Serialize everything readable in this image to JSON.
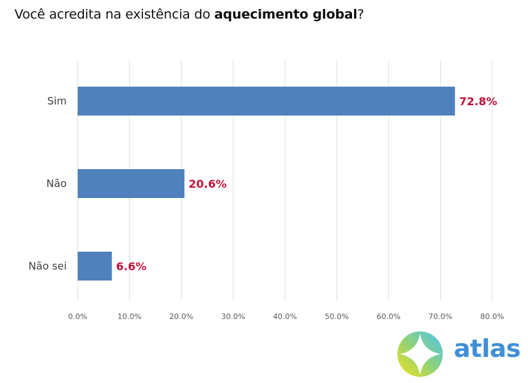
{
  "title": {
    "prefix": "Você acredita na existência do ",
    "bold": "aquecimento global",
    "suffix": "?"
  },
  "chart_data": {
    "type": "bar",
    "orientation": "horizontal",
    "title": "Você acredita na existência do aquecimento global?",
    "xlabel": "",
    "ylabel": "",
    "categories": [
      "Sim",
      "Não",
      "Não sei"
    ],
    "values": [
      72.8,
      20.6,
      6.6
    ],
    "data_labels": [
      "72.8%",
      "20.6%",
      "6.6%"
    ],
    "xlim": [
      0,
      80
    ],
    "x_ticks": [
      0,
      10,
      20,
      30,
      40,
      50,
      60,
      70,
      80
    ],
    "x_tick_labels": [
      "0.0%",
      "10.0%",
      "20.0%",
      "30.0%",
      "40.0%",
      "50.0%",
      "60.0%",
      "70.0%",
      "80.0%"
    ],
    "grid": "vertical",
    "legend": "none",
    "colors": {
      "bar": "#4f81bd",
      "data_label": "#c0143c",
      "grid": "#e3e3e3"
    }
  },
  "logo": {
    "text": "atlas",
    "icon": "atlas-compass-icon",
    "colors": {
      "text": "#3f8fd6",
      "ring_start": "#f5e21a",
      "ring_end": "#4cc3f0"
    }
  }
}
